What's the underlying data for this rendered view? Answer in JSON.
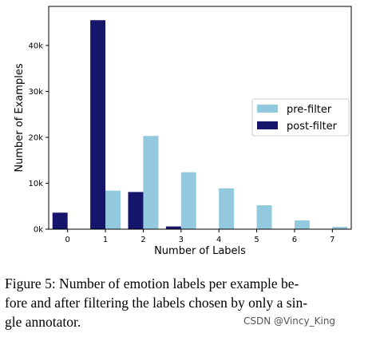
{
  "chart_data": {
    "type": "bar",
    "categories": [
      "0",
      "1",
      "2",
      "3",
      "4",
      "5",
      "6",
      "7"
    ],
    "series": [
      {
        "name": "pre-filter",
        "color": "#92c9de",
        "values": [
          0,
          8400,
          20300,
          12400,
          8900,
          5200,
          1900,
          500
        ]
      },
      {
        "name": "post-filter",
        "color": "#15156b",
        "values": [
          3600,
          45500,
          8100,
          600,
          0,
          0,
          0,
          0
        ]
      }
    ],
    "xlabel": "Number of Labels",
    "ylabel": "Number of Examples",
    "ylim": [
      0,
      48500
    ],
    "yticks": [
      0,
      10000,
      20000,
      30000,
      40000
    ],
    "ytick_labels": [
      "0k",
      "10k",
      "20k",
      "30k",
      "40k"
    ],
    "legend_position": "center-right",
    "grid": false
  },
  "caption": {
    "lines": [
      "Figure 5:  Number of emotion labels per example be-",
      "fore and after filtering the labels chosen by only a sin-",
      "gle annotator."
    ]
  },
  "watermark": "CSDN @Vincy_King"
}
